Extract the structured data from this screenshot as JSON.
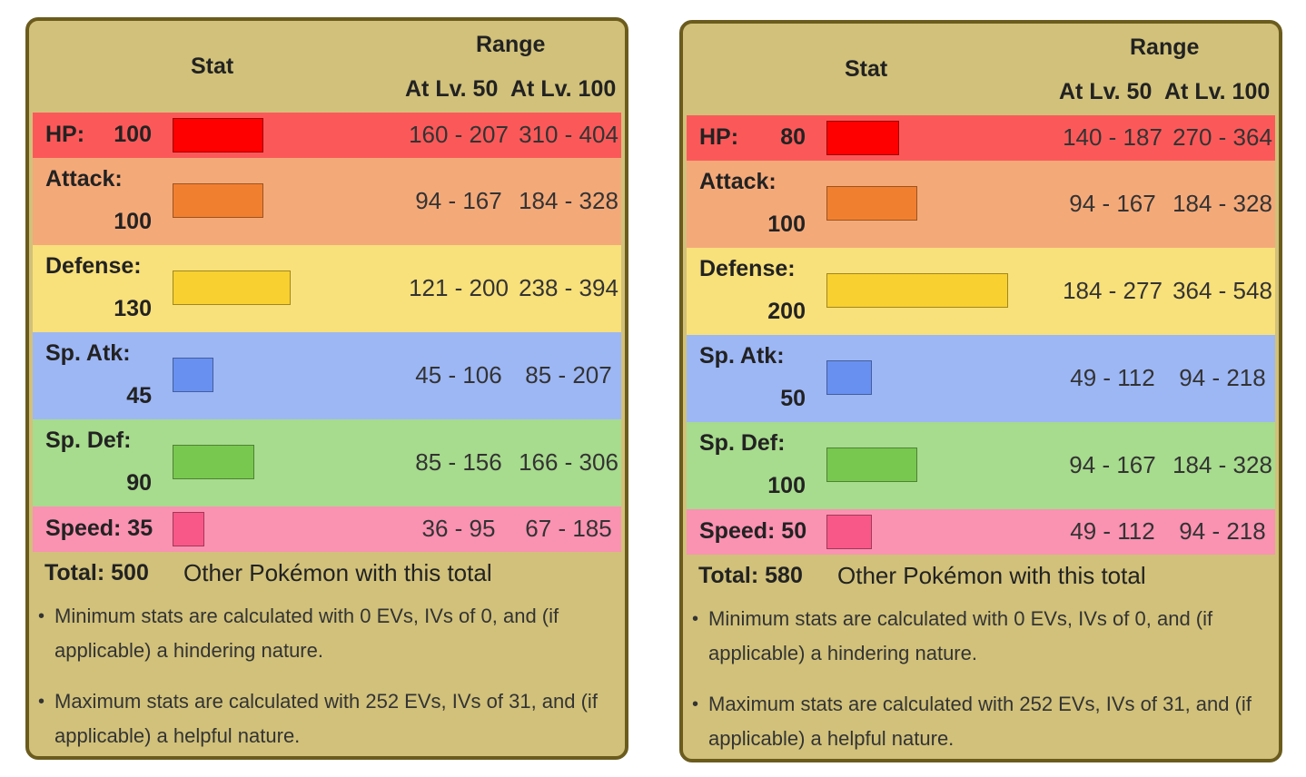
{
  "headers": {
    "stat": "Stat",
    "range": "Range",
    "lv50": "At Lv. 50",
    "lv100": "At Lv. 100"
  },
  "colors": {
    "panel_bg": "#d1c17a",
    "panel_border": "#6b5c1e",
    "hp": {
      "row": "#fb5959",
      "bar": "#ff0000",
      "border": "#a00000"
    },
    "attack": {
      "row": "#f4a979",
      "bar": "#f08030",
      "border": "#9c531f"
    },
    "defense": {
      "row": "#f8e07a",
      "bar": "#f8d030",
      "border": "#a1871f"
    },
    "spatk": {
      "row": "#9db7f5",
      "bar": "#6890f0",
      "border": "#445e9c"
    },
    "spdef": {
      "row": "#a7db8d",
      "bar": "#78c850",
      "border": "#4e8234"
    },
    "speed": {
      "row": "#fa92b2",
      "bar": "#f85888",
      "border": "#a13959"
    }
  },
  "panels": [
    {
      "stats": [
        {
          "key": "hp",
          "label": "HP:",
          "value": "100",
          "fraction": 0.4,
          "r50": "160 - 207",
          "r100": "310 - 404"
        },
        {
          "key": "attack",
          "label": "Attack:",
          "value": "100",
          "fraction": 0.4,
          "r50": "94 - 167",
          "r100": "184 - 328"
        },
        {
          "key": "defense",
          "label": "Defense:",
          "value": "130",
          "fraction": 0.52,
          "r50": "121 - 200",
          "r100": "238 - 394"
        },
        {
          "key": "spatk",
          "label": "Sp. Atk:",
          "value": "45",
          "fraction": 0.18,
          "r50": "45 - 106",
          "r100": "85 - 207"
        },
        {
          "key": "spdef",
          "label": "Sp. Def:",
          "value": "90",
          "fraction": 0.36,
          "r50": "85 - 156",
          "r100": "166 - 306"
        },
        {
          "key": "speed",
          "label": "Speed: 35",
          "value": "35",
          "fraction": 0.14,
          "r50": "36 - 95",
          "r100": "67 - 185"
        }
      ],
      "total_label": "Total: 500",
      "total_link": "Other Pokémon with this total"
    },
    {
      "stats": [
        {
          "key": "hp",
          "label": "HP:",
          "value": "80",
          "fraction": 0.32,
          "r50": "140 - 187",
          "r100": "270 - 364"
        },
        {
          "key": "attack",
          "label": "Attack:",
          "value": "100",
          "fraction": 0.4,
          "r50": "94 - 167",
          "r100": "184 - 328"
        },
        {
          "key": "defense",
          "label": "Defense:",
          "value": "200",
          "fraction": 0.8,
          "r50": "184 - 277",
          "r100": "364 - 548"
        },
        {
          "key": "spatk",
          "label": "Sp. Atk:",
          "value": "50",
          "fraction": 0.2,
          "r50": "49 - 112",
          "r100": "94 - 218"
        },
        {
          "key": "spdef",
          "label": "Sp. Def:",
          "value": "100",
          "fraction": 0.4,
          "r50": "94 - 167",
          "r100": "184 - 328"
        },
        {
          "key": "speed",
          "label": "Speed: 50",
          "value": "50",
          "fraction": 0.2,
          "r50": "49 - 112",
          "r100": "94 - 218"
        }
      ],
      "total_label": "Total: 580",
      "total_link": "Other Pokémon with this total"
    }
  ],
  "notes": [
    "Minimum stats are calculated with 0 EVs, IVs of 0, and (if applicable) a hindering nature.",
    "Maximum stats are calculated with 252 EVs, IVs of 31, and (if applicable) a helpful nature."
  ]
}
